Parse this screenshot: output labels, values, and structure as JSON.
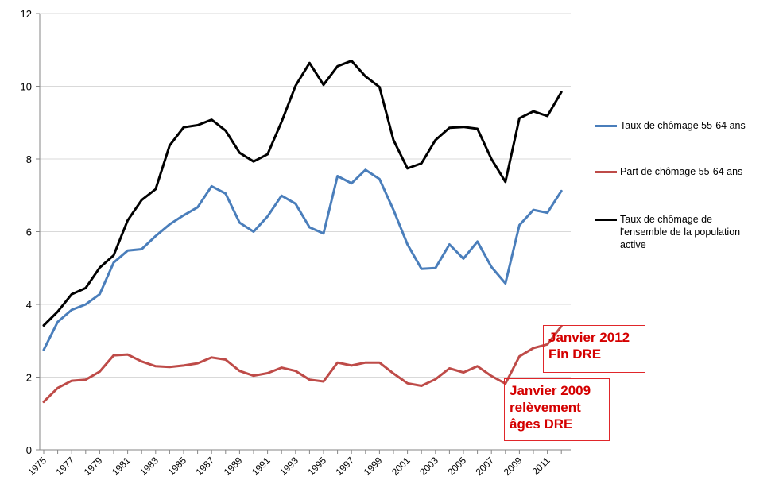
{
  "chart_data": {
    "type": "line",
    "x": [
      1975,
      1976,
      1977,
      1978,
      1979,
      1980,
      1981,
      1982,
      1983,
      1984,
      1985,
      1986,
      1987,
      1988,
      1989,
      1990,
      1991,
      1992,
      1993,
      1994,
      1995,
      1996,
      1997,
      1998,
      1999,
      2000,
      2001,
      2002,
      2003,
      2004,
      2005,
      2006,
      2007,
      2008,
      2009,
      2010,
      2011,
      2012
    ],
    "x_tick_labels": [
      "1975",
      "1977",
      "1979",
      "1981",
      "1983",
      "1985",
      "1987",
      "1989",
      "1991",
      "1993",
      "1995",
      "1997",
      "1999",
      "2001",
      "2003",
      "2005",
      "2007",
      "2009",
      "2011"
    ],
    "y_tick_labels": [
      "0",
      "2",
      "4",
      "6",
      "8",
      "10",
      "12"
    ],
    "ylim": [
      0,
      12
    ],
    "grid": "horizontal",
    "legend_position": "right",
    "series": [
      {
        "name": "Taux de chômage 55-64 ans",
        "color": "#4a7ebb",
        "values": [
          2.75,
          3.52,
          3.85,
          4.0,
          4.28,
          5.15,
          5.48,
          5.52,
          5.88,
          6.2,
          6.45,
          6.67,
          7.25,
          7.05,
          6.25,
          6.0,
          6.42,
          6.99,
          6.77,
          6.12,
          5.95,
          7.53,
          7.33,
          7.7,
          7.45,
          6.6,
          5.65,
          4.98,
          5.0,
          5.65,
          5.26,
          5.73,
          5.03,
          4.58,
          6.18,
          6.6,
          6.52,
          7.12
        ]
      },
      {
        "name": "Part de chômage 55-64 ans",
        "color": "#be4b48",
        "values": [
          1.32,
          1.7,
          1.9,
          1.93,
          2.15,
          2.6,
          2.62,
          2.43,
          2.3,
          2.28,
          2.32,
          2.38,
          2.54,
          2.48,
          2.17,
          2.04,
          2.11,
          2.26,
          2.17,
          1.93,
          1.88,
          2.4,
          2.32,
          2.4,
          2.4,
          2.1,
          1.83,
          1.76,
          1.94,
          2.24,
          2.13,
          2.3,
          2.03,
          1.82,
          2.57,
          2.8,
          2.9,
          3.4
        ]
      },
      {
        "name": "Taux de chômage de l'ensemble de la population active",
        "color": "#000000",
        "values": [
          3.42,
          3.8,
          4.28,
          4.45,
          5.01,
          5.35,
          6.31,
          6.87,
          7.17,
          8.37,
          8.87,
          8.93,
          9.08,
          8.78,
          8.17,
          7.93,
          8.13,
          9.02,
          10.01,
          10.64,
          10.04,
          10.55,
          10.7,
          10.27,
          9.98,
          8.52,
          7.74,
          7.88,
          8.52,
          8.86,
          8.88,
          8.83,
          8.0,
          7.37,
          9.12,
          9.31,
          9.18,
          9.84
        ]
      }
    ],
    "annotations": [
      {
        "line1": "Janvier 2012",
        "line2": "Fin DRE",
        "color": "#d40000"
      },
      {
        "line1": "Janvier 2009",
        "line2": "relèvement",
        "line3": "âges DRE",
        "color": "#d40000"
      }
    ]
  }
}
